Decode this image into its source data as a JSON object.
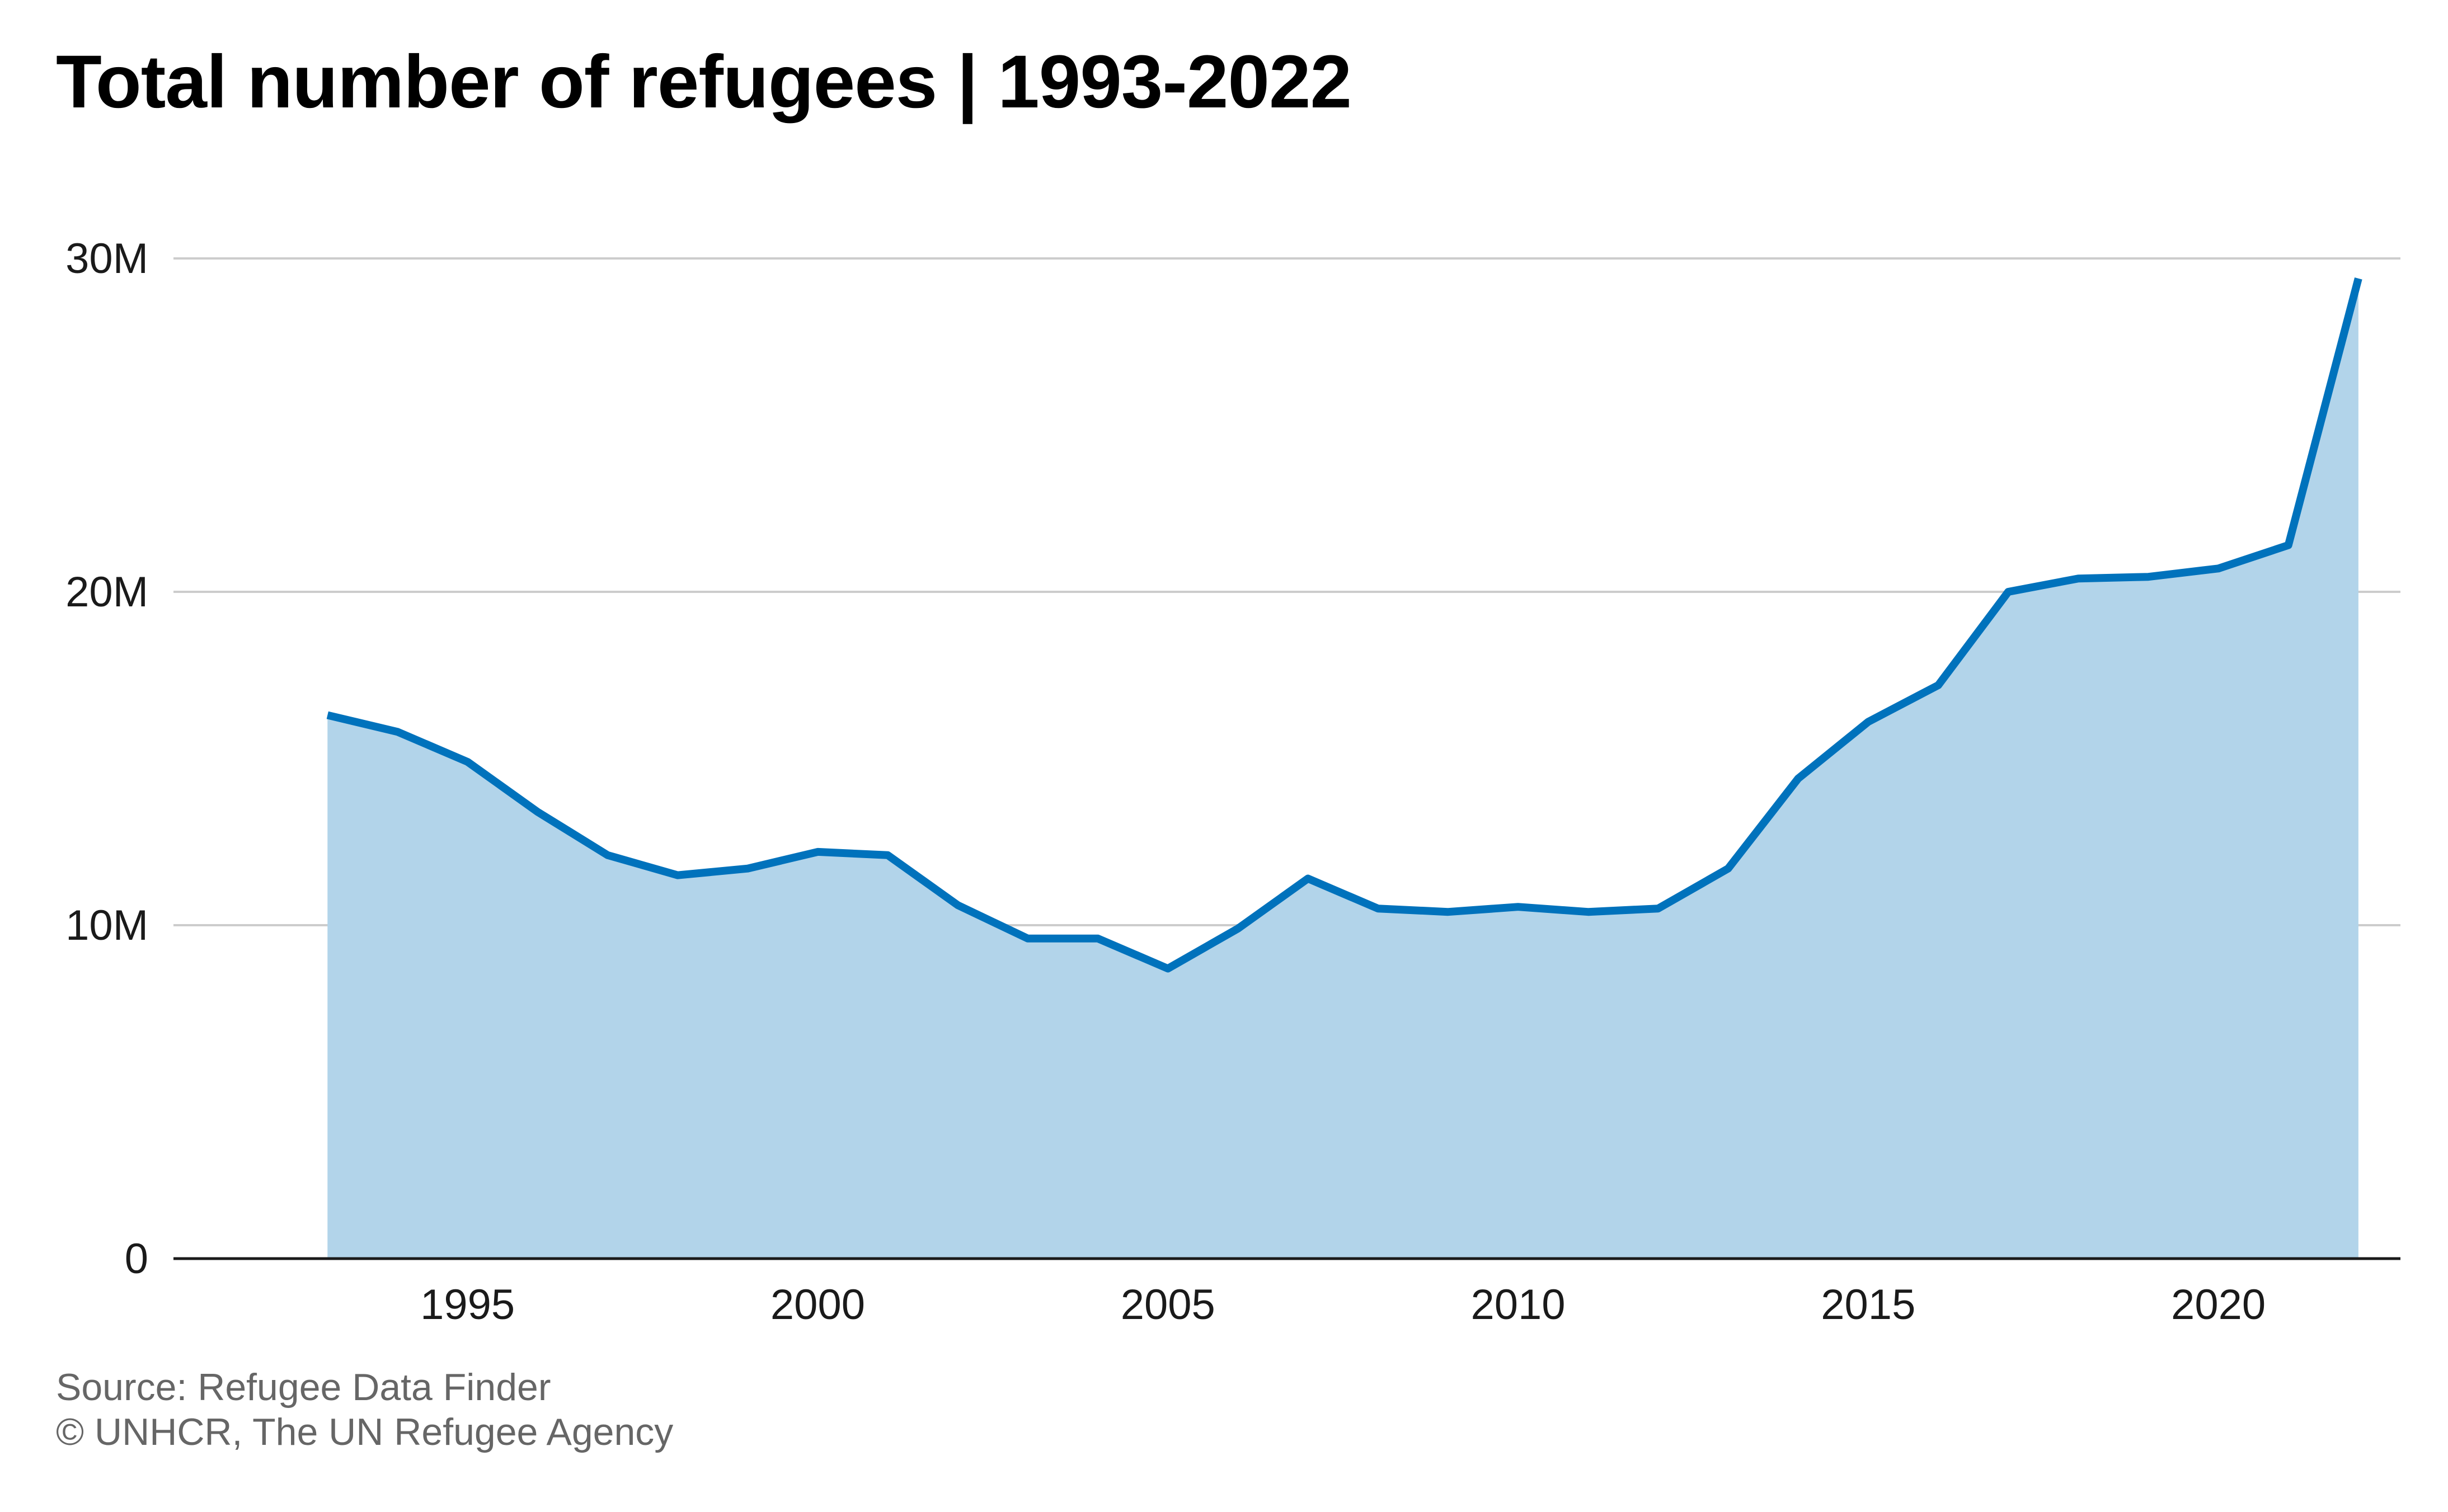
{
  "title": "Total number of refugees | 1993-2022",
  "source": "Source: Refugee Data Finder",
  "credit": "© UNHCR, The UN Refugee Agency",
  "colors": {
    "line": "#0072bc",
    "area": "#b2d4ea",
    "grid": "#cccccc",
    "axis": "#1a1a1a"
  },
  "chart_data": {
    "type": "area",
    "title": "Total number of refugees | 1993-2022",
    "xlabel": "",
    "ylabel": "",
    "x": [
      1993,
      1994,
      1995,
      1996,
      1997,
      1998,
      1999,
      2000,
      2001,
      2002,
      2003,
      2004,
      2005,
      2006,
      2007,
      2008,
      2009,
      2010,
      2011,
      2012,
      2013,
      2014,
      2015,
      2016,
      2017,
      2018,
      2019,
      2020,
      2021,
      2022
    ],
    "series": [
      {
        "name": "",
        "values": [
          16.3,
          15.8,
          14.9,
          13.4,
          12.1,
          11.5,
          11.7,
          12.2,
          12.1,
          10.6,
          9.6,
          9.6,
          8.7,
          9.9,
          11.4,
          10.5,
          10.4,
          10.55,
          10.4,
          10.5,
          11.7,
          14.4,
          16.1,
          17.2,
          20.0,
          20.4,
          20.45,
          20.7,
          21.4,
          29.4
        ]
      }
    ],
    "xticks": [
      1995,
      2000,
      2005,
      2010,
      2015,
      2020
    ],
    "xtick_labels": [
      "1995",
      "2000",
      "2005",
      "2010",
      "2015",
      "2020"
    ],
    "yticks": [
      0,
      10,
      20,
      30
    ],
    "ytick_labels": [
      "0",
      "10M",
      "20M",
      "30M"
    ],
    "xlim": [
      1990.8,
      2022.6
    ],
    "ylim": [
      0,
      30
    ],
    "y_unit": "millions",
    "grid": true,
    "legend": "none"
  }
}
